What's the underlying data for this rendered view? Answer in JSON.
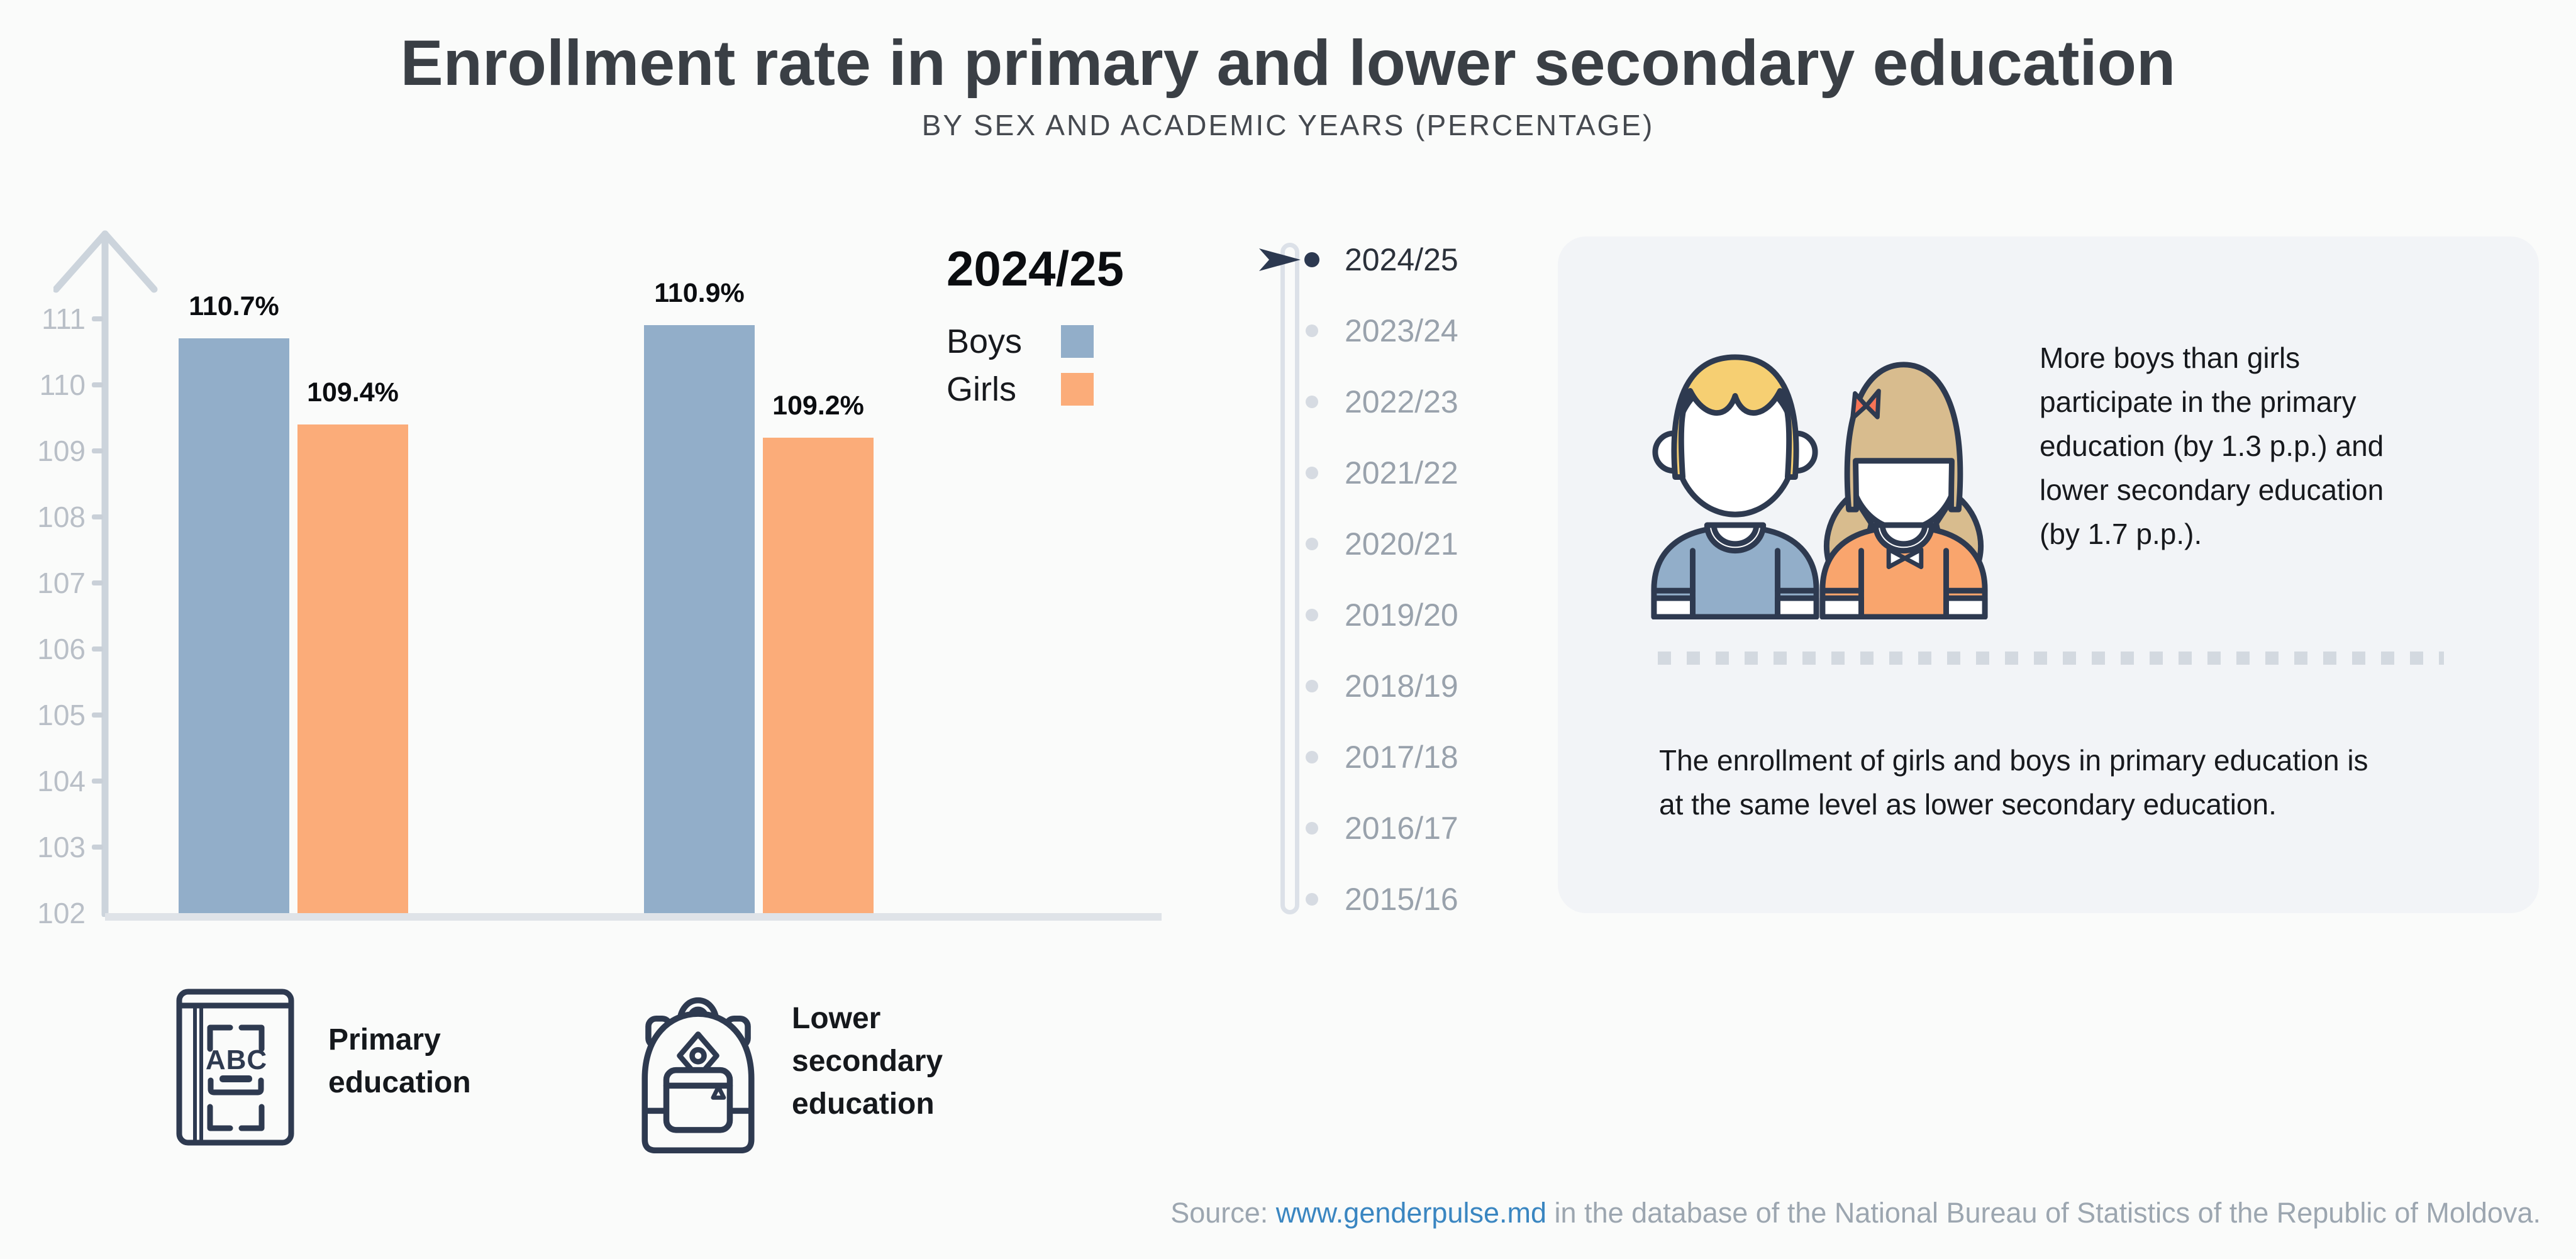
{
  "header": {
    "title": "Enrollment rate in primary and lower secondary education",
    "subtitle": "BY SEX AND ACADEMIC YEARS (PERCENTAGE)"
  },
  "chart_data": {
    "type": "bar",
    "title": "Enrollment rate in primary and lower secondary education",
    "subtitle": "By sex and academic years (percentage)",
    "categories": [
      "Primary education",
      "Lower secondary education"
    ],
    "series": [
      {
        "name": "Boys",
        "color": "#92aec9",
        "values": [
          110.7,
          110.9
        ]
      },
      {
        "name": "Girls",
        "color": "#fbac79",
        "values": [
          109.4,
          109.2
        ]
      }
    ],
    "unit": "%",
    "ylim": [
      102,
      111
    ],
    "yticks": [
      102,
      103,
      104,
      105,
      106,
      107,
      108,
      109,
      110,
      111
    ],
    "grid": false,
    "legend_title": "2024/25",
    "legend_position": "top-right"
  },
  "timeline": {
    "years": [
      "2024/25",
      "2023/24",
      "2022/23",
      "2021/22",
      "2020/21",
      "2019/20",
      "2018/19",
      "2017/18",
      "2016/17",
      "2015/16"
    ],
    "active_year": "2024/25"
  },
  "panel": {
    "highlight_lines": [
      "More boys than girls",
      "participate in the primary",
      "education (by 1.3 p.p.) and",
      "lower secondary education",
      "(by 1.7 p.p.)."
    ],
    "note_lines": [
      "The enrollment of girls and boys in primary education is",
      "at the same level as lower secondary education."
    ]
  },
  "category_blocks": [
    {
      "label_lines": [
        "Primary",
        "education"
      ],
      "icon": "abc-book-icon",
      "icon_text": "ABC"
    },
    {
      "label_lines": [
        "Lower",
        "secondary",
        "education"
      ],
      "icon": "backpack-icon"
    }
  ],
  "source": {
    "prefix": "Source: ",
    "link": "www.genderpulse.md",
    "suffix": " in the database of the National Bureau of Statistics of the Republic of Moldova."
  },
  "colors": {
    "boys": "#92aec9",
    "girls": "#fbac79",
    "accent_navy": "#2c3950",
    "link_blue": "#3a86c1",
    "panel_bg": "#f2f4f7",
    "axis_gray": "#ccd4dc"
  }
}
